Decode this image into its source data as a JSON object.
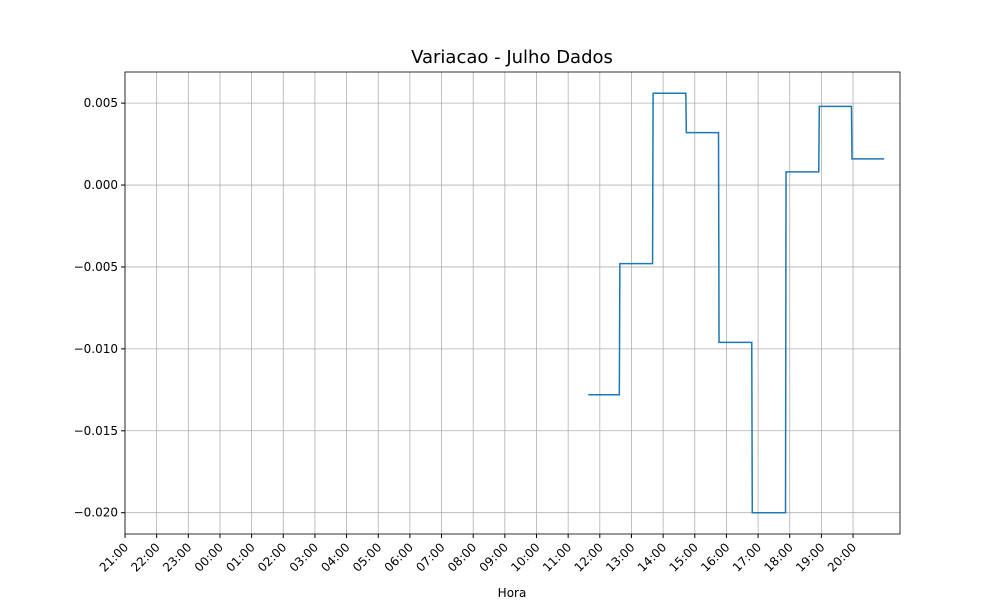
{
  "chart_data": {
    "type": "line",
    "title": "Variacao - Julho Dados",
    "x_label": "Hora",
    "x": [
      "11:38",
      "12:37",
      "12:38",
      "13:40",
      "13:41",
      "14:43",
      "14:44",
      "15:45",
      "15:46",
      "16:48",
      "16:49",
      "17:52",
      "17:53",
      "18:55",
      "18:56",
      "19:57",
      "19:58",
      "20:59"
    ],
    "series": [
      {
        "color": "#1f77b4",
        "values": [
          -0.0128,
          -0.0128,
          -0.0048,
          -0.0048,
          0.0056,
          0.0056,
          0.0032,
          0.0032,
          -0.0096,
          -0.0096,
          -0.02,
          -0.02,
          0.0008,
          0.0008,
          0.0048,
          0.0048,
          0.0016,
          0.0016
        ]
      }
    ],
    "xlim": [
      "21:00",
      "21:29"
    ],
    "xticks": [
      "21:00",
      "22:00",
      "23:00",
      "00:00",
      "01:00",
      "02:00",
      "03:00",
      "04:00",
      "05:00",
      "06:00",
      "07:00",
      "08:00",
      "09:00",
      "10:00",
      "11:00",
      "12:00",
      "13:00",
      "14:00",
      "15:00",
      "16:00",
      "17:00",
      "18:00",
      "19:00",
      "20:00"
    ],
    "ylim": [
      -0.0213,
      0.0069
    ],
    "yticks": [
      {
        "value": -0.02,
        "label": "−0.020"
      },
      {
        "value": -0.015,
        "label": "−0.015"
      },
      {
        "value": -0.01,
        "label": "−0.010"
      },
      {
        "value": -0.005,
        "label": "−0.005"
      },
      {
        "value": 0,
        "label": "0.000"
      },
      0.005
    ],
    "grid": true
  }
}
